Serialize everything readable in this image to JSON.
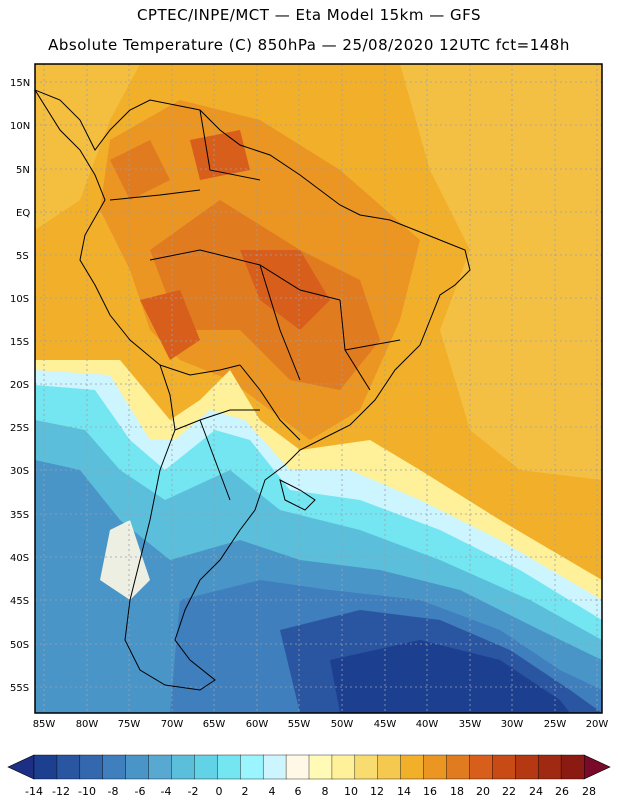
{
  "header": {
    "line1": "CPTEC/INPE/MCT —  Eta Model 15km — GFS",
    "line2": "Absolute Temperature (C) 850hPa — 25/08/2020 12UTC fct=148h"
  },
  "map": {
    "lat_labels": [
      "15N",
      "10N",
      "5N",
      "EQ",
      "5S",
      "10S",
      "15S",
      "20S",
      "25S",
      "30S",
      "35S",
      "40S",
      "45S",
      "50S",
      "55S"
    ],
    "lon_labels": [
      "85W",
      "80W",
      "75W",
      "70W",
      "65W",
      "60W",
      "55W",
      "50W",
      "45W",
      "40W",
      "35W",
      "30W",
      "25W",
      "20W"
    ]
  },
  "colorbar": {
    "ticks": [
      "-14",
      "-12",
      "-10",
      "-8",
      "-6",
      "-4",
      "-2",
      "0",
      "2",
      "4",
      "6",
      "8",
      "10",
      "12",
      "14",
      "16",
      "18",
      "20",
      "22",
      "24",
      "26",
      "28"
    ],
    "colors": [
      "#1d3f8f",
      "#2a55a0",
      "#3468ae",
      "#3f7fbd",
      "#4a95c8",
      "#58a9d2",
      "#5bbfdc",
      "#62d3e7",
      "#74e6f2",
      "#9af5ff",
      "#cdf5ff",
      "#fff8e6",
      "#fffbb7",
      "#fff09a",
      "#f9dc6f",
      "#f5c84f",
      "#f2b02a",
      "#eb9522",
      "#e07b1f",
      "#d75e1b",
      "#c84a14",
      "#b43811",
      "#a02a11",
      "#8b1a12"
    ],
    "low_color": "#1c2f84",
    "high_color": "#7a0a2a"
  }
}
